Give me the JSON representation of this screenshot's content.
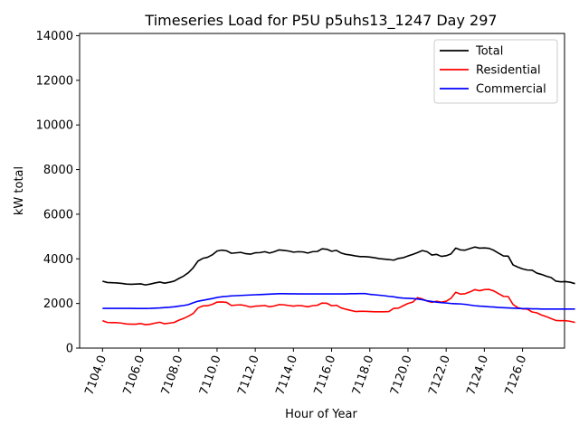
{
  "chart_data": {
    "type": "line",
    "title": "Timeseries Load for P5U p5uhs13_1247  Day 297",
    "xlabel": "Hour of Year",
    "ylabel": "kW total",
    "xlim": [
      7102.8,
      7128.2
    ],
    "ylim": [
      0,
      14100
    ],
    "xticks": [
      7104,
      7106,
      7108,
      7110,
      7112,
      7114,
      7116,
      7118,
      7120,
      7122,
      7124,
      7126
    ],
    "xtick_labels": [
      "7104.0",
      "7106.0",
      "7108.0",
      "7110.0",
      "7112.0",
      "7114.0",
      "7116.0",
      "7118.0",
      "7120.0",
      "7122.0",
      "7124.0",
      "7126.0"
    ],
    "yticks": [
      0,
      2000,
      4000,
      6000,
      8000,
      10000,
      12000,
      14000
    ],
    "ytick_labels": [
      "0",
      "2000",
      "4000",
      "6000",
      "8000",
      "10000",
      "12000",
      "14000"
    ],
    "grid": false,
    "legend_position": "top-right",
    "x_start": 7104.0,
    "x_step": 0.25,
    "series": [
      {
        "name": "Total",
        "color": "#000000",
        "values": [
          3000,
          2940,
          2930,
          2920,
          2900,
          2870,
          2860,
          2870,
          2880,
          2830,
          2870,
          2920,
          2960,
          2910,
          2950,
          3000,
          3120,
          3230,
          3380,
          3600,
          3900,
          4020,
          4070,
          4180,
          4350,
          4390,
          4360,
          4250,
          4270,
          4290,
          4230,
          4210,
          4270,
          4280,
          4320,
          4260,
          4320,
          4400,
          4380,
          4350,
          4300,
          4320,
          4310,
          4260,
          4320,
          4330,
          4450,
          4430,
          4340,
          4380,
          4260,
          4200,
          4170,
          4130,
          4100,
          4100,
          4080,
          4050,
          4010,
          3990,
          3970,
          3940,
          4020,
          4050,
          4130,
          4200,
          4280,
          4370,
          4320,
          4170,
          4200,
          4110,
          4140,
          4220,
          4480,
          4400,
          4390,
          4460,
          4530,
          4480,
          4490,
          4470,
          4380,
          4250,
          4130,
          4120,
          3730,
          3630,
          3550,
          3500,
          3490,
          3360,
          3300,
          3220,
          3160,
          3000,
          2970,
          2980,
          2950,
          2890
        ]
      },
      {
        "name": "Residential",
        "color": "#ff0000",
        "values": [
          1230,
          1150,
          1140,
          1140,
          1120,
          1080,
          1070,
          1070,
          1100,
          1050,
          1070,
          1120,
          1160,
          1090,
          1120,
          1150,
          1250,
          1330,
          1430,
          1550,
          1800,
          1890,
          1900,
          1960,
          2060,
          2070,
          2050,
          1910,
          1930,
          1940,
          1900,
          1840,
          1880,
          1890,
          1910,
          1850,
          1890,
          1950,
          1940,
          1910,
          1880,
          1910,
          1890,
          1850,
          1900,
          1920,
          2020,
          2010,
          1900,
          1920,
          1800,
          1740,
          1690,
          1640,
          1650,
          1650,
          1640,
          1630,
          1630,
          1630,
          1640,
          1780,
          1790,
          1900,
          2000,
          2060,
          2260,
          2200,
          2110,
          2050,
          2100,
          2060,
          2100,
          2230,
          2500,
          2420,
          2440,
          2520,
          2620,
          2570,
          2620,
          2630,
          2560,
          2440,
          2320,
          2310,
          1960,
          1810,
          1760,
          1750,
          1620,
          1580,
          1480,
          1410,
          1320,
          1240,
          1230,
          1230,
          1200,
          1150
        ]
      },
      {
        "name": "Commercial",
        "color": "#0000ff",
        "values": [
          1780,
          1780,
          1780,
          1780,
          1780,
          1780,
          1780,
          1775,
          1775,
          1775,
          1780,
          1790,
          1800,
          1815,
          1830,
          1850,
          1880,
          1910,
          1950,
          2030,
          2100,
          2140,
          2180,
          2220,
          2270,
          2300,
          2320,
          2340,
          2350,
          2360,
          2370,
          2380,
          2390,
          2400,
          2410,
          2420,
          2430,
          2440,
          2440,
          2435,
          2435,
          2430,
          2430,
          2430,
          2430,
          2430,
          2430,
          2430,
          2430,
          2430,
          2430,
          2430,
          2440,
          2440,
          2445,
          2445,
          2410,
          2390,
          2370,
          2350,
          2320,
          2300,
          2260,
          2240,
          2230,
          2220,
          2200,
          2170,
          2120,
          2090,
          2060,
          2040,
          2020,
          2000,
          1990,
          1980,
          1960,
          1930,
          1900,
          1880,
          1870,
          1850,
          1840,
          1820,
          1810,
          1800,
          1790,
          1780,
          1770,
          1770,
          1760,
          1760,
          1750,
          1750,
          1750,
          1750,
          1750,
          1750,
          1750,
          1750
        ]
      }
    ]
  }
}
